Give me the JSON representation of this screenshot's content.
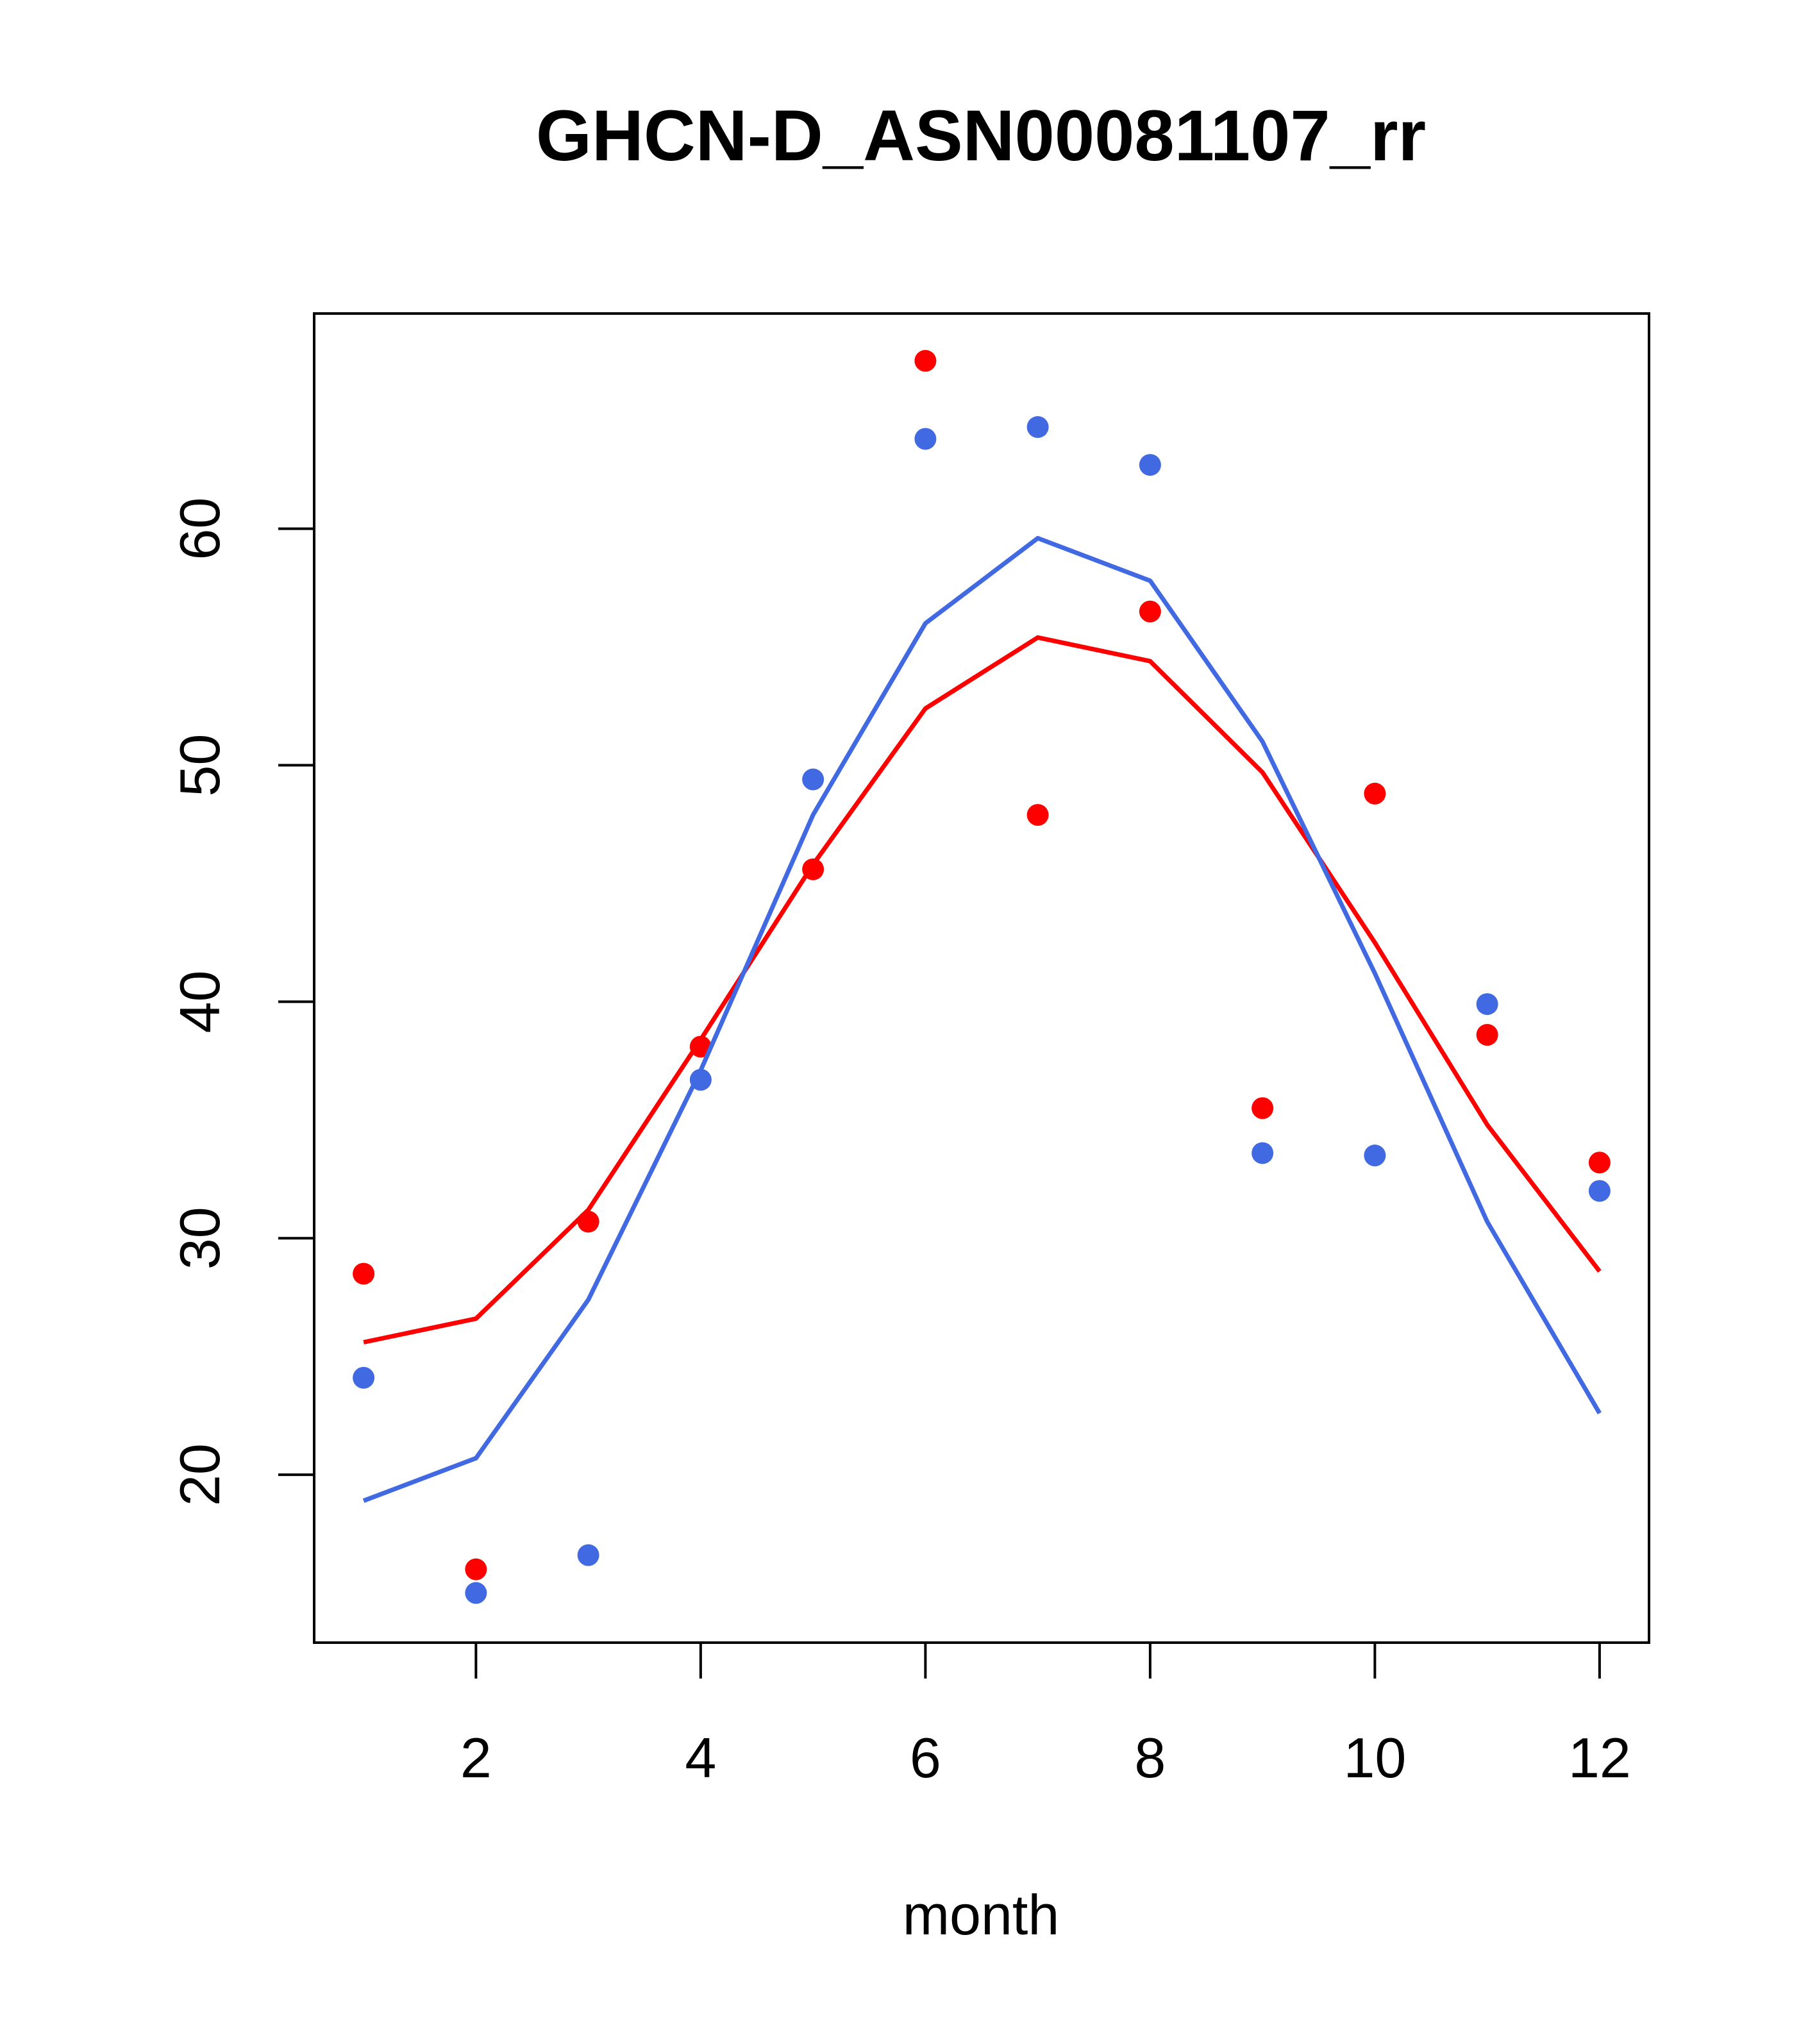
{
  "chart_data": {
    "type": "line",
    "title": "GHCN-D_ASN00081107_rr",
    "xlabel": "month",
    "ylabel": "",
    "x_ticks": [
      2,
      4,
      6,
      8,
      10,
      12
    ],
    "y_ticks": [
      20,
      30,
      40,
      50,
      60
    ],
    "xlim": [
      0.56,
      12.44
    ],
    "ylim": [
      12.9,
      69.1
    ],
    "grid": false,
    "legend": "none",
    "x": [
      1,
      2,
      3,
      4,
      5,
      6,
      7,
      8,
      9,
      10,
      11,
      12
    ],
    "series": [
      {
        "color": "#FF0000",
        "points": [
          28.5,
          16.0,
          30.7,
          38.1,
          45.6,
          67.1,
          47.9,
          56.5,
          35.5,
          48.8,
          38.6,
          33.2
        ],
        "line": [
          25.6,
          26.6,
          31.2,
          38.4,
          45.8,
          52.4,
          55.4,
          54.4,
          49.7,
          42.5,
          34.8,
          28.6
        ]
      },
      {
        "color": "#4169E1",
        "points": [
          24.1,
          15.0,
          16.6,
          36.7,
          49.4,
          63.8,
          64.3,
          62.7,
          33.6,
          33.5,
          39.9,
          32.0
        ],
        "line": [
          18.9,
          20.7,
          27.4,
          37.1,
          47.9,
          56.0,
          59.6,
          57.8,
          51.0,
          41.2,
          30.7,
          22.6
        ]
      }
    ]
  }
}
